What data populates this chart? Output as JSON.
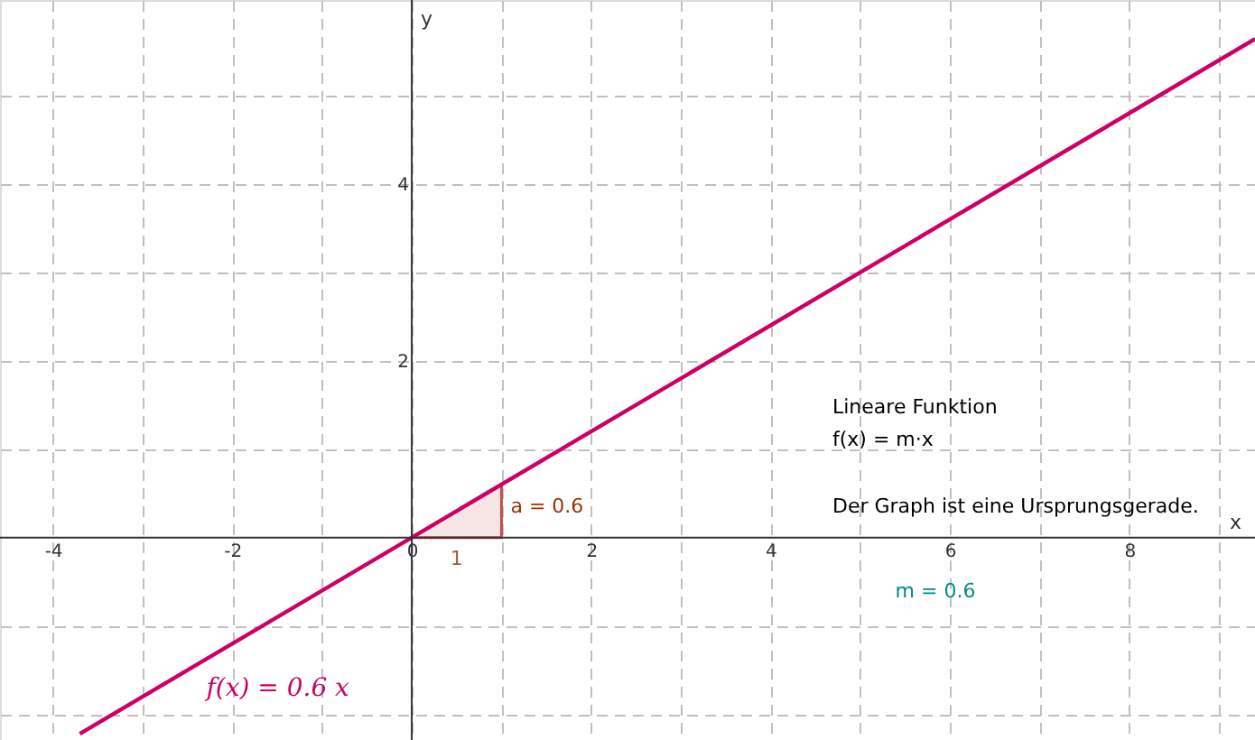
{
  "chart_data": {
    "type": "line",
    "xlabel": "x",
    "ylabel": "y",
    "xlim": [
      -4.59,
      9.4
    ],
    "ylim": [
      -2.29,
      6.08
    ],
    "xticks": [
      -4,
      {
        "value": -3,
        "label": null
      },
      -2,
      {
        "value": -1,
        "label": null
      },
      0,
      {
        "value": 1,
        "label": null
      },
      2,
      {
        "value": 3,
        "label": null
      },
      4,
      {
        "value": 5,
        "label": null
      },
      6,
      {
        "value": 7,
        "label": null
      },
      8,
      {
        "value": 9,
        "label": null
      }
    ],
    "yticks": [
      {
        "value": -2,
        "label": null
      },
      {
        "value": -1,
        "label": null
      },
      {
        "value": 1,
        "label": null
      },
      2,
      {
        "value": 3,
        "label": null
      },
      4,
      {
        "value": 5,
        "label": null
      }
    ],
    "grid": true,
    "series": [
      {
        "type": "area",
        "color": "#c0504d",
        "x": [
          0,
          1
        ],
        "values": [
          0,
          0.6
        ]
      },
      {
        "name": "f(x) = 0.6 x",
        "color": "#cc0066",
        "x": [
          -3.7,
          9.4
        ],
        "values": [
          -2.22,
          5.64
        ]
      }
    ],
    "annotations": [
      {
        "text": "a = 0.6",
        "x": 1,
        "y": 0.3
      },
      {
        "text": "1",
        "x": 0.5,
        "y": 0
      },
      "m = 0.6",
      "Lineare Funktion",
      "f(x) = m·x",
      "Der Graph ist eine Ursprungsgerade."
    ]
  }
}
